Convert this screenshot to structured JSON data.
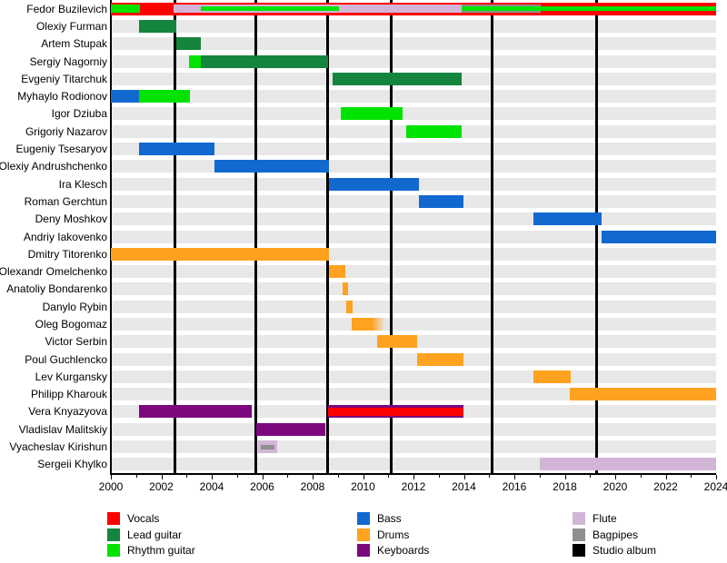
{
  "chart_data": {
    "type": "gantt",
    "x_axis": {
      "min": 2000,
      "max": 2024,
      "major_ticks": [
        2000,
        2002,
        2004,
        2006,
        2008,
        2010,
        2012,
        2014,
        2016,
        2018,
        2020,
        2022,
        2024
      ],
      "minor_tick_step": 1
    },
    "studio_album_years": [
      2002.55,
      2005.75,
      2008.6,
      2011.1,
      2015.1,
      2019.25
    ],
    "roles_colors": {
      "vocals": "#fe0000",
      "lead_guitar": "#15843c",
      "rhythm_guitar": "#00e300",
      "bass": "#1169d0",
      "drums": "#ffa21f",
      "keyboards": "#7d087d",
      "flute": "#d2b5d7",
      "bagpipes": "#8f8f8f",
      "studio_album": "#000000"
    },
    "row_band_color": "#e8e8e8",
    "members": [
      {
        "name": "Fedor Buzilevich",
        "segments": [
          {
            "role": "vocals",
            "start": 2000,
            "end": 2024,
            "layer": "outer"
          },
          {
            "role": "rhythm_guitar",
            "start": 2000,
            "end": 2001.15,
            "layer": "mid"
          },
          {
            "role": "flute",
            "start": 2002.5,
            "end": 2013.9,
            "layer": "mid"
          },
          {
            "role": "bagpipes",
            "start": 2013.9,
            "end": 2017.05,
            "layer": "mid"
          },
          {
            "role": "rhythm_guitar",
            "start": 2003.55,
            "end": 2009.05,
            "layer": "inner"
          },
          {
            "role": "rhythm_guitar",
            "start": 2013.9,
            "end": 2024,
            "layer": "inner"
          }
        ]
      },
      {
        "name": "Olexiy Furman",
        "segments": [
          {
            "role": "lead_guitar",
            "start": 2001.1,
            "end": 2002.6,
            "layer": "outer"
          }
        ]
      },
      {
        "name": "Artem Stupak",
        "segments": [
          {
            "role": "lead_guitar",
            "start": 2002.6,
            "end": 2003.55,
            "layer": "outer"
          }
        ]
      },
      {
        "name": "Sergiy Nagorniy",
        "segments": [
          {
            "role": "rhythm_guitar",
            "start": 2003.1,
            "end": 2003.55,
            "layer": "outer"
          },
          {
            "role": "lead_guitar",
            "start": 2003.55,
            "end": 2008.6,
            "layer": "outer"
          }
        ]
      },
      {
        "name": "Evgeniy Titarchuk",
        "segments": [
          {
            "role": "lead_guitar",
            "start": 2008.8,
            "end": 2013.9,
            "layer": "outer"
          }
        ]
      },
      {
        "name": "Myhaylo Rodionov",
        "segments": [
          {
            "role": "bass",
            "start": 2000,
            "end": 2001.1,
            "layer": "outer"
          },
          {
            "role": "rhythm_guitar",
            "start": 2001.1,
            "end": 2003.15,
            "layer": "outer"
          }
        ]
      },
      {
        "name": "Igor Dziuba",
        "segments": [
          {
            "role": "rhythm_guitar",
            "start": 2009.1,
            "end": 2011.55,
            "layer": "outer"
          }
        ]
      },
      {
        "name": "Grigoriy Nazarov",
        "segments": [
          {
            "role": "rhythm_guitar",
            "start": 2011.7,
            "end": 2013.9,
            "layer": "outer"
          }
        ]
      },
      {
        "name": "Eugeniy Tsesaryov",
        "segments": [
          {
            "role": "bass",
            "start": 2001.1,
            "end": 2004.1,
            "layer": "outer"
          }
        ]
      },
      {
        "name": "Olexiy Andrushchenko",
        "segments": [
          {
            "role": "bass",
            "start": 2004.1,
            "end": 2008.65,
            "layer": "outer"
          }
        ]
      },
      {
        "name": "Ira Klesch",
        "segments": [
          {
            "role": "bass",
            "start": 2008.65,
            "end": 2012.2,
            "layer": "outer"
          }
        ]
      },
      {
        "name": "Roman Gerchtun",
        "segments": [
          {
            "role": "bass",
            "start": 2012.2,
            "end": 2014,
            "layer": "outer"
          }
        ]
      },
      {
        "name": "Deny Moshkov",
        "segments": [
          {
            "role": "bass",
            "start": 2016.75,
            "end": 2019.45,
            "layer": "outer"
          }
        ]
      },
      {
        "name": "Andriy Iakovenko",
        "segments": [
          {
            "role": "bass",
            "start": 2019.45,
            "end": 2024,
            "layer": "outer"
          }
        ]
      },
      {
        "name": "Dmitry Titorenko",
        "segments": [
          {
            "role": "drums",
            "start": 2000,
            "end": 2008.65,
            "layer": "outer"
          }
        ]
      },
      {
        "name": "Olexandr Omelchenko",
        "segments": [
          {
            "role": "drums",
            "start": 2008.65,
            "end": 2009.3,
            "layer": "outer"
          }
        ]
      },
      {
        "name": "Anatoliy Bondarenko",
        "segments": [
          {
            "role": "drums",
            "start": 2009.2,
            "end": 2009.4,
            "layer": "outer"
          }
        ]
      },
      {
        "name": "Danylo Rybin",
        "segments": [
          {
            "role": "drums",
            "start": 2009.35,
            "end": 2009.6,
            "layer": "outer"
          }
        ]
      },
      {
        "name": "Oleg Bogomaz",
        "segments": [
          {
            "role": "drums",
            "start": 2009.55,
            "end": 2010.9,
            "layer": "outer",
            "fade": "right"
          }
        ]
      },
      {
        "name": "Victor Serbin",
        "segments": [
          {
            "role": "drums",
            "start": 2010.55,
            "end": 2012.15,
            "layer": "outer"
          }
        ]
      },
      {
        "name": "Poul Guchlencko",
        "segments": [
          {
            "role": "drums",
            "start": 2012.15,
            "end": 2014,
            "layer": "outer"
          }
        ]
      },
      {
        "name": "Lev Kurgansky",
        "segments": [
          {
            "role": "drums",
            "start": 2016.75,
            "end": 2018.25,
            "layer": "outer"
          }
        ]
      },
      {
        "name": "Philipp Kharouk",
        "segments": [
          {
            "role": "drums",
            "start": 2018.2,
            "end": 2024,
            "layer": "outer"
          }
        ]
      },
      {
        "name": "Vera Knyazyova",
        "segments": [
          {
            "role": "keyboards",
            "start": 2001.1,
            "end": 2005.6,
            "layer": "outer"
          },
          {
            "role": "keyboards",
            "start": 2008.6,
            "end": 2014,
            "layer": "outer"
          },
          {
            "role": "vocals",
            "start": 2008.6,
            "end": 2014,
            "layer": "mid"
          }
        ]
      },
      {
        "name": "Vladislav Malitskiy",
        "segments": [
          {
            "role": "keyboards",
            "start": 2005.75,
            "end": 2008.5,
            "layer": "outer"
          }
        ]
      },
      {
        "name": "Vyacheslav Kirishun",
        "segments": [
          {
            "role": "flute",
            "start": 2005.85,
            "end": 2006.6,
            "layer": "outer"
          },
          {
            "role": "bagpipes",
            "start": 2005.95,
            "end": 2006.5,
            "layer": "inner"
          }
        ]
      },
      {
        "name": "Sergeii Khylko",
        "segments": [
          {
            "role": "flute",
            "start": 2017,
            "end": 2024,
            "layer": "outer"
          }
        ]
      }
    ],
    "legend": {
      "columns": [
        [
          {
            "label": "Vocals",
            "role": "vocals"
          },
          {
            "label": "Lead guitar",
            "role": "lead_guitar"
          },
          {
            "label": "Rhythm guitar",
            "role": "rhythm_guitar"
          }
        ],
        [
          {
            "label": "Bass",
            "role": "bass"
          },
          {
            "label": "Drums",
            "role": "drums"
          },
          {
            "label": "Keyboards",
            "role": "keyboards"
          }
        ],
        [
          {
            "label": "Flute",
            "role": "flute"
          },
          {
            "label": "Bagpipes",
            "role": "bagpipes"
          },
          {
            "label": "Studio album",
            "role": "studio_album"
          }
        ]
      ]
    }
  }
}
